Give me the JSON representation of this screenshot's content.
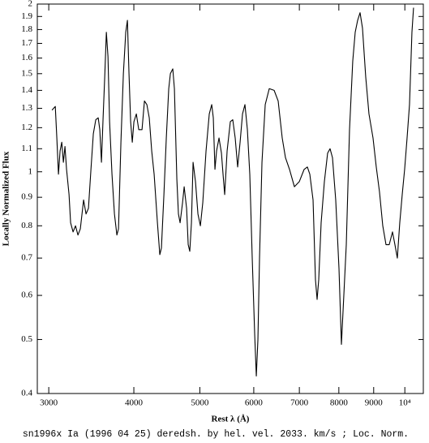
{
  "chart_data": {
    "type": "line",
    "caption": "sn1996x Ia (1996 04 25) deredsh. by hel. vel.  2033. km/s ;  Loc. Norm.",
    "x_label": "Rest λ (Å)",
    "y_label": "Locally Normalized Flux",
    "xlog": true,
    "ylog": true,
    "xlim": [
      2886,
      10645
    ],
    "ylim": [
      0.4,
      2
    ],
    "xticks": [
      3000,
      4000,
      5000,
      6000,
      7000,
      8000,
      9000,
      {
        "value": 10000,
        "label": "10⁴"
      }
    ],
    "yticks": [
      0.4,
      0.5,
      0.6,
      0.7,
      0.8,
      0.9,
      1,
      1.1,
      1.2,
      1.3,
      1.4,
      1.5,
      1.6,
      1.7,
      1.8,
      1.9,
      2
    ],
    "color": "#000000",
    "x": [
      3033,
      3067,
      3083,
      3100,
      3117,
      3135,
      3152,
      3169,
      3186,
      3213,
      3230,
      3257,
      3284,
      3311,
      3338,
      3357,
      3375,
      3403,
      3431,
      3460,
      3488,
      3517,
      3546,
      3565,
      3585,
      3605,
      3625,
      3645,
      3665,
      3685,
      3715,
      3746,
      3777,
      3798,
      3829,
      3861,
      3892,
      3914,
      3935,
      3957,
      3979,
      4001,
      4034,
      4067,
      4112,
      4146,
      4180,
      4214,
      4249,
      4284,
      4332,
      4367,
      4391,
      4428,
      4464,
      4501,
      4526,
      4563,
      4588,
      4626,
      4651,
      4677,
      4716,
      4742,
      4781,
      4807,
      4833,
      4860,
      4887,
      4927,
      4968,
      5009,
      5050,
      5106,
      5162,
      5205,
      5233,
      5262,
      5291,
      5335,
      5379,
      5408,
      5438,
      5483,
      5543,
      5589,
      5635,
      5682,
      5729,
      5776,
      5824,
      5872,
      5920,
      5969,
      6019,
      6052,
      6085,
      6118,
      6169,
      6237,
      6323,
      6428,
      6516,
      6606,
      6679,
      6771,
      6884,
      6998,
      7114,
      7192,
      7252,
      7332,
      7392,
      7433,
      7474,
      7535,
      7618,
      7702,
      7766,
      7830,
      7916,
      8004,
      8070,
      8136,
      8204,
      8294,
      8385,
      8455,
      8525,
      8595,
      8666,
      8761,
      8858,
      8980,
      9079,
      9179,
      9281,
      9383,
      9486,
      9591,
      9670,
      9750,
      9830,
      9912,
      9993,
      10076,
      10159,
      10243,
      10299
    ],
    "values": [
      1.29,
      1.31,
      1.15,
      0.99,
      1.09,
      1.13,
      1.04,
      1.11,
      1.01,
      0.91,
      0.81,
      0.78,
      0.8,
      0.77,
      0.79,
      0.84,
      0.89,
      0.84,
      0.86,
      1.01,
      1.17,
      1.24,
      1.25,
      1.19,
      1.04,
      1.25,
      1.48,
      1.78,
      1.61,
      1.23,
      0.99,
      0.84,
      0.77,
      0.79,
      1.13,
      1.5,
      1.78,
      1.87,
      1.5,
      1.23,
      1.13,
      1.23,
      1.27,
      1.19,
      1.19,
      1.34,
      1.32,
      1.25,
      1.09,
      0.99,
      0.81,
      0.71,
      0.73,
      0.91,
      1.15,
      1.41,
      1.5,
      1.53,
      1.41,
      0.97,
      0.84,
      0.81,
      0.88,
      0.94,
      0.86,
      0.74,
      0.72,
      0.81,
      1.04,
      0.96,
      0.84,
      0.8,
      0.88,
      1.09,
      1.27,
      1.32,
      1.25,
      1.01,
      1.09,
      1.15,
      1.08,
      0.99,
      0.91,
      1.09,
      1.23,
      1.24,
      1.15,
      1.02,
      1.13,
      1.27,
      1.32,
      1.19,
      0.99,
      0.7,
      0.51,
      0.43,
      0.5,
      0.7,
      1.04,
      1.32,
      1.41,
      1.4,
      1.34,
      1.15,
      1.06,
      1.01,
      0.94,
      0.96,
      1.01,
      1.02,
      0.99,
      0.89,
      0.64,
      0.59,
      0.64,
      0.81,
      0.96,
      1.08,
      1.1,
      1.06,
      0.89,
      0.67,
      0.49,
      0.6,
      0.74,
      1.19,
      1.58,
      1.78,
      1.87,
      1.93,
      1.81,
      1.48,
      1.27,
      1.15,
      1.02,
      0.92,
      0.8,
      0.74,
      0.74,
      0.78,
      0.74,
      0.7,
      0.81,
      0.91,
      1.01,
      1.15,
      1.32,
      1.78,
      1.97
    ]
  }
}
